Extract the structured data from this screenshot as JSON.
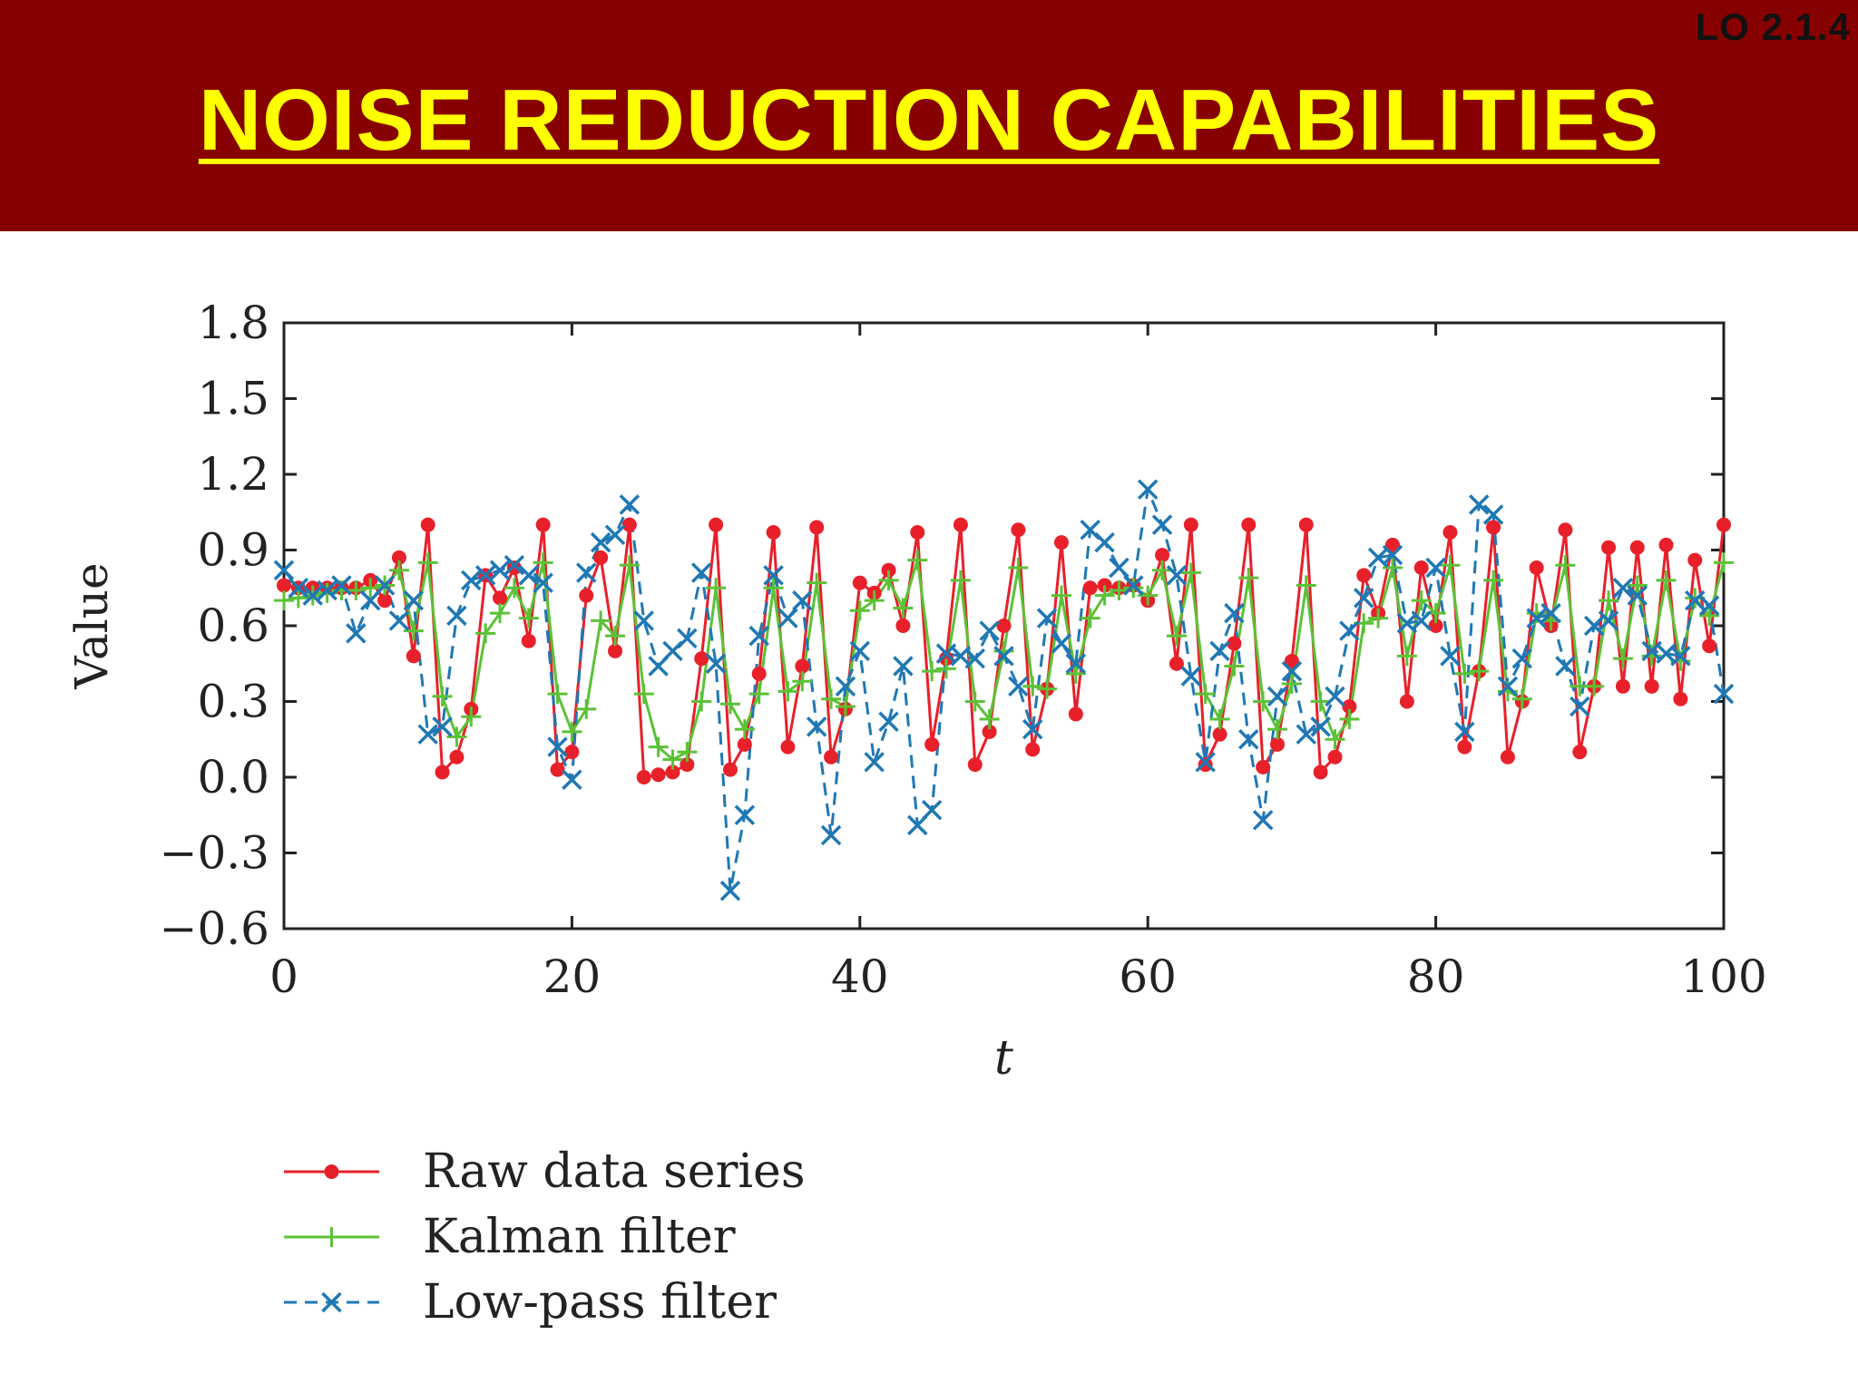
{
  "header": {
    "lo_code": "LO 2.1.4",
    "title": "NOISE REDUCTION CAPABILITIES",
    "background": "#870000",
    "title_color": "#ffff00"
  },
  "chart_data": {
    "type": "line",
    "title": "",
    "xlabel": "t",
    "ylabel": "Value",
    "xlim": [
      0,
      100
    ],
    "ylim": [
      -0.6,
      1.8
    ],
    "xticks": [
      0,
      20,
      40,
      60,
      80,
      100
    ],
    "xtick_labels": [
      "0",
      "20",
      "40",
      "60",
      "80",
      "100"
    ],
    "yticks": [
      -0.6,
      -0.3,
      0.0,
      0.3,
      0.6,
      0.9,
      1.2,
      1.5,
      1.8
    ],
    "ytick_labels": [
      "−0.6",
      "−0.3",
      "0.0",
      "0.3",
      "0.6",
      "0.9",
      "1.2",
      "1.5",
      "1.8"
    ],
    "grid": false,
    "legend_position": "bottom-left",
    "x": [
      0,
      1,
      2,
      3,
      4,
      5,
      6,
      7,
      8,
      9,
      10,
      11,
      12,
      13,
      14,
      15,
      16,
      17,
      18,
      19,
      20,
      21,
      22,
      23,
      24,
      25,
      26,
      27,
      28,
      29,
      30,
      31,
      32,
      33,
      34,
      35,
      36,
      37,
      38,
      39,
      40,
      41,
      42,
      43,
      44,
      45,
      46,
      47,
      48,
      49,
      50,
      51,
      52,
      53,
      54,
      55,
      56,
      57,
      58,
      59,
      60,
      61,
      62,
      63,
      64,
      65,
      66,
      67,
      68,
      69,
      70,
      71,
      72,
      73,
      74,
      75,
      76,
      77,
      78,
      79,
      80,
      81,
      82,
      83,
      84,
      85,
      86,
      87,
      88,
      89,
      90,
      91,
      92,
      93,
      94,
      95,
      96,
      97,
      98,
      99,
      100
    ],
    "series": [
      {
        "name": "Raw data series",
        "color": "#e8202a",
        "marker": "circle",
        "dash": "solid",
        "values": [
          0.76,
          0.75,
          0.75,
          0.75,
          0.75,
          0.75,
          0.78,
          0.7,
          0.87,
          0.48,
          1.0,
          0.02,
          0.08,
          0.27,
          0.8,
          0.71,
          0.83,
          0.54,
          1.0,
          0.03,
          0.1,
          0.72,
          0.87,
          0.5,
          1.0,
          0.0,
          0.01,
          0.02,
          0.05,
          0.47,
          1.0,
          0.03,
          0.13,
          0.41,
          0.97,
          0.12,
          0.44,
          0.99,
          0.08,
          0.27,
          0.77,
          0.73,
          0.82,
          0.6,
          0.97,
          0.13,
          0.47,
          1.0,
          0.05,
          0.18,
          0.6,
          0.98,
          0.11,
          0.35,
          0.93,
          0.25,
          0.75,
          0.76,
          0.75,
          0.76,
          0.7,
          0.88,
          0.45,
          1.0,
          0.05,
          0.17,
          0.53,
          1.0,
          0.04,
          0.13,
          0.46,
          1.0,
          0.02,
          0.08,
          0.28,
          0.8,
          0.65,
          0.92,
          0.3,
          0.83,
          0.6,
          0.97,
          0.12,
          0.42,
          0.99,
          0.08,
          0.3,
          0.83,
          0.6,
          0.98,
          0.1,
          0.36,
          0.91,
          0.36,
          0.91,
          0.36,
          0.92,
          0.31,
          0.86,
          0.52,
          1.0
        ]
      },
      {
        "name": "Kalman filter",
        "color": "#5bc236",
        "marker": "plus",
        "dash": "solid",
        "values": [
          0.7,
          0.71,
          0.72,
          0.73,
          0.74,
          0.74,
          0.75,
          0.76,
          0.82,
          0.58,
          0.85,
          0.32,
          0.16,
          0.24,
          0.57,
          0.65,
          0.75,
          0.63,
          0.85,
          0.33,
          0.18,
          0.27,
          0.62,
          0.56,
          0.84,
          0.33,
          0.12,
          0.07,
          0.1,
          0.3,
          0.75,
          0.29,
          0.19,
          0.33,
          0.75,
          0.34,
          0.38,
          0.77,
          0.31,
          0.28,
          0.66,
          0.7,
          0.78,
          0.67,
          0.86,
          0.42,
          0.43,
          0.78,
          0.3,
          0.23,
          0.5,
          0.83,
          0.36,
          0.35,
          0.72,
          0.41,
          0.63,
          0.72,
          0.74,
          0.75,
          0.72,
          0.82,
          0.56,
          0.81,
          0.33,
          0.23,
          0.44,
          0.79,
          0.3,
          0.19,
          0.37,
          0.76,
          0.3,
          0.15,
          0.23,
          0.61,
          0.63,
          0.83,
          0.48,
          0.7,
          0.65,
          0.84,
          0.41,
          0.42,
          0.78,
          0.34,
          0.31,
          0.65,
          0.62,
          0.84,
          0.36,
          0.36,
          0.7,
          0.47,
          0.76,
          0.48,
          0.78,
          0.46,
          0.71,
          0.64,
          0.85
        ]
      },
      {
        "name": "Low-pass filter",
        "color": "#1f78b4",
        "marker": "x",
        "dash": "dashed",
        "values": [
          0.82,
          0.75,
          0.72,
          0.74,
          0.76,
          0.57,
          0.7,
          0.76,
          0.62,
          0.7,
          0.17,
          0.2,
          0.64,
          0.78,
          0.8,
          0.82,
          0.84,
          0.8,
          0.77,
          0.12,
          -0.01,
          0.81,
          0.93,
          0.96,
          1.08,
          0.62,
          0.44,
          0.5,
          0.55,
          0.81,
          0.45,
          -0.45,
          -0.15,
          0.56,
          0.8,
          0.63,
          0.7,
          0.2,
          -0.23,
          0.36,
          0.5,
          0.06,
          0.22,
          0.44,
          -0.19,
          -0.13,
          0.49,
          0.48,
          0.47,
          0.58,
          0.48,
          0.36,
          0.19,
          0.63,
          0.53,
          0.45,
          0.98,
          0.93,
          0.83,
          0.76,
          1.14,
          1.0,
          0.8,
          0.4,
          0.06,
          0.5,
          0.65,
          0.15,
          -0.17,
          0.32,
          0.42,
          0.17,
          0.2,
          0.32,
          0.58,
          0.71,
          0.87,
          0.88,
          0.61,
          0.62,
          0.83,
          0.48,
          0.18,
          1.08,
          1.04,
          0.36,
          0.47,
          0.63,
          0.65,
          0.44,
          0.28,
          0.6,
          0.62,
          0.75,
          0.72,
          0.5,
          0.49,
          0.48,
          0.7,
          0.68,
          0.33
        ]
      }
    ]
  }
}
